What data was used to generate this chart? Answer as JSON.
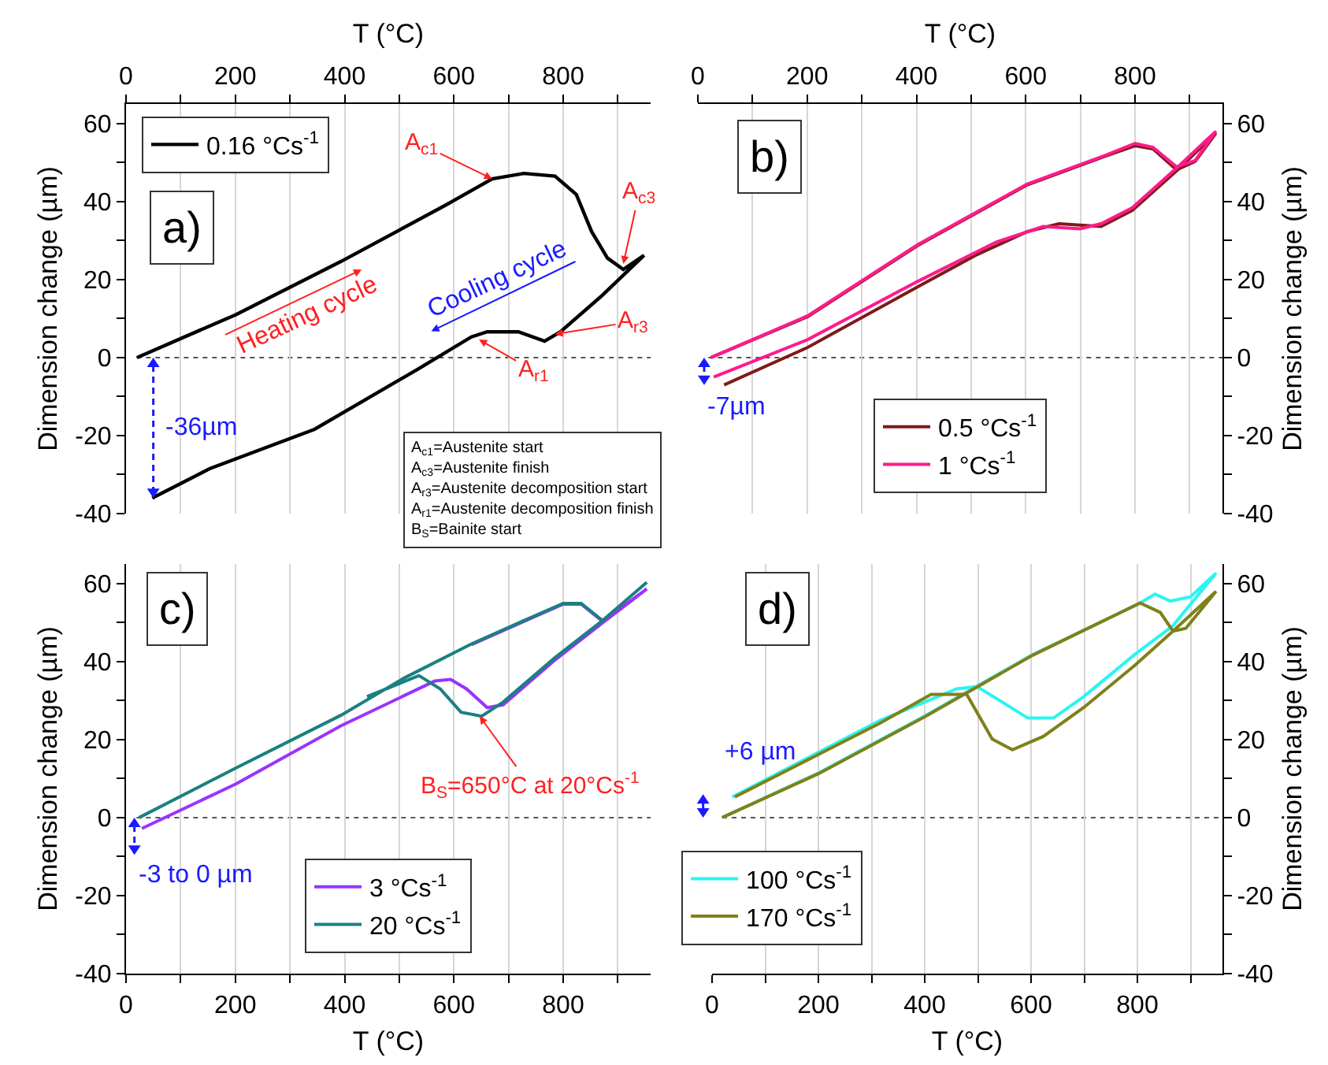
{
  "chart_data": [
    {
      "type": "line",
      "xlabel": "T (°C)",
      "ylabel": "Dimension change (µm)",
      "xlim": [
        0,
        960
      ],
      "ylim": [
        -40,
        65
      ],
      "xticks": [
        0,
        {
          "value": 100,
          "label": null
        },
        200,
        {
          "value": 300,
          "label": null
        },
        400,
        {
          "value": 500,
          "label": null
        },
        600,
        {
          "value": 700,
          "label": null
        },
        800,
        {
          "value": 900,
          "label": null
        }
      ],
      "yticks": [
        -40,
        {
          "value": -30,
          "label": null
        },
        -20,
        {
          "value": -10,
          "label": null
        },
        0,
        {
          "value": 10,
          "label": null
        },
        20,
        {
          "value": 30,
          "label": null
        },
        40,
        {
          "value": 50,
          "label": null
        },
        60
      ],
      "grid": "x",
      "legend": "top left",
      "ref_lines": [
        {
          "axis": "y",
          "value": 0,
          "color": "#555555",
          "line_style": "dotted"
        }
      ],
      "series": [
        {
          "name": "0.16 °Cs$^{-1}$",
          "color": "#000000",
          "x": [
            20,
            201,
            393,
            584,
            670,
            728,
            785,
            824,
            852,
            881,
            910,
            948,
            872,
            795,
            766,
            718,
            661,
            632,
            536,
            345,
            153,
            48
          ],
          "values": [
            0,
            11,
            24.6,
            39,
            45.8,
            47.2,
            46.5,
            41.8,
            32.3,
            25.5,
            22.6,
            26.2,
            16,
            6.6,
            4.2,
            6.6,
            6.6,
            5.3,
            -2.8,
            -18.4,
            -28.5,
            -36
          ]
        }
      ],
      "annotations": [
        "a)",
        {
          "text": "A$_{c1}$",
          "x": 670,
          "y": 45.8
        },
        {
          "text": "A$_{c3}$",
          "x": 910,
          "y": 24
        },
        {
          "text": "A$_{r3}$",
          "x": 785,
          "y": 6
        },
        {
          "text": "A$_{r1}$",
          "x": 646,
          "y": 4.6
        },
        "Heating cycle",
        "Cooling cycle",
        "-36µm",
        "A$_{c1}$=Austenite start\nA$_{c3}$=Austenite finish\nA$_{r3}$=Austenite decomposition start\nA$_{r1}$=Austenite decomposition finish\nB$_{S}$=Bainite start"
      ]
    },
    {
      "type": "line",
      "xlabel": "T (°C)",
      "ylabel": "Dimension change (µm)",
      "xlim": [
        0,
        960
      ],
      "ylim": [
        -40,
        65
      ],
      "xticks": [
        0,
        {
          "value": 100,
          "label": null
        },
        200,
        {
          "value": 300,
          "label": null
        },
        400,
        {
          "value": 500,
          "label": null
        },
        600,
        {
          "value": 700,
          "label": null
        },
        800,
        {
          "value": 900,
          "label": null
        }
      ],
      "yticks": [
        -40,
        {
          "value": -30,
          "label": null
        },
        -20,
        {
          "value": -10,
          "label": null
        },
        0,
        {
          "value": 10,
          "label": null
        },
        20,
        {
          "value": 30,
          "label": null
        },
        40,
        {
          "value": 50,
          "label": null
        },
        60
      ],
      "grid": "x",
      "legend": "bottom",
      "ref_lines": [
        {
          "axis": "y",
          "value": 0,
          "color": "#555555",
          "line_style": "dotted"
        }
      ],
      "series": [
        {
          "name": "0.5 °Cs$^{-1}$",
          "color": "#7f1a1a",
          "x": [
            24,
            201,
            402,
            603,
            747,
            800,
            833,
            876,
            910,
            948,
            881,
            795,
            738,
            661,
            603,
            508,
            402,
            201,
            48
          ],
          "values": [
            0,
            10.5,
            28.7,
            44.3,
            51.7,
            54.3,
            53.5,
            48.1,
            50.3,
            57.5,
            48.5,
            37.7,
            33.6,
            34.3,
            32.3,
            26.2,
            18.1,
            2.6,
            -7
          ]
        },
        {
          "name": "1 °Cs$^{-1}$",
          "color": "#ff1a8c",
          "x": [
            24,
            201,
            402,
            603,
            747,
            800,
            833,
            876,
            910,
            948,
            881,
            795,
            738,
            699,
            632,
            546,
            402,
            201,
            29
          ],
          "values": [
            0,
            10.7,
            28.9,
            44.5,
            51.9,
            54.9,
            53.9,
            48.9,
            50.5,
            58,
            49.2,
            38.4,
            34.3,
            33,
            33.6,
            29.6,
            19.5,
            4.6,
            -5
          ]
        }
      ],
      "annotations": [
        "b)",
        "-7µm"
      ]
    },
    {
      "type": "line",
      "xlabel": "T (°C)",
      "ylabel": "Dimension change (µm)",
      "xlim": [
        0,
        960
      ],
      "ylim": [
        -40,
        65
      ],
      "xticks": [
        0,
        {
          "value": 100,
          "label": null
        },
        200,
        {
          "value": 300,
          "label": null
        },
        400,
        {
          "value": 500,
          "label": null
        },
        600,
        {
          "value": 700,
          "label": null
        },
        800,
        {
          "value": 900,
          "label": null
        }
      ],
      "yticks": [
        -40,
        {
          "value": -30,
          "label": null
        },
        -20,
        {
          "value": -10,
          "label": null
        },
        0,
        {
          "value": 10,
          "label": null
        },
        20,
        {
          "value": 30,
          "label": null
        },
        40,
        {
          "value": 50,
          "label": null
        },
        60
      ],
      "grid": "x",
      "legend": "bottom",
      "ref_lines": [
        {
          "axis": "y",
          "value": 0,
          "color": "#555555",
          "line_style": "dotted"
        }
      ],
      "series": [
        {
          "name": "3 °Cs$^{-1}$",
          "color": "#9933ff",
          "x": [
            632,
            728,
            800,
            833,
            872,
            953,
            872,
            785,
            690,
            661,
            623,
            594,
            565,
            393,
            201,
            29
          ],
          "values": [
            44.3,
            50.3,
            54.7,
            54.7,
            50.3,
            58.6,
            49.9,
            40.4,
            28.9,
            28.2,
            33,
            35.4,
            35,
            23.5,
            8.6,
            -2.8
          ]
        },
        {
          "name": "20 °Cs$^{-1}$",
          "color": "#1a8080",
          "x": [
            24,
            201,
            393,
            508,
            632,
            728,
            800,
            833,
            872,
            953,
            872,
            785,
            690,
            651,
            613,
            575,
            536,
            441
          ],
          "values": [
            0,
            12.7,
            26.2,
            35.7,
            44.5,
            50.5,
            54.9,
            54.9,
            50.5,
            60.3,
            50.5,
            41,
            29.6,
            26,
            27,
            33,
            36.4,
            31
          ]
        }
      ],
      "annotations": [
        "c)",
        {
          "text": "B$_{S}$=650°C at 20°Cs$^{-1}$",
          "x": 647,
          "y": 26
        },
        "-3 to 0 µm"
      ]
    },
    {
      "type": "line",
      "xlabel": "T (°C)",
      "ylabel": "Dimension change (µm)",
      "xlim": [
        0,
        960
      ],
      "ylim": [
        -40,
        65
      ],
      "xticks": [
        0,
        {
          "value": 100,
          "label": null
        },
        200,
        {
          "value": 300,
          "label": null
        },
        400,
        {
          "value": 500,
          "label": null
        },
        600,
        {
          "value": 700,
          "label": null
        },
        800,
        {
          "value": 900,
          "label": null
        }
      ],
      "yticks": [
        -40,
        {
          "value": -30,
          "label": null
        },
        -20,
        {
          "value": -10,
          "label": null
        },
        0,
        {
          "value": 10,
          "label": null
        },
        20,
        {
          "value": 30,
          "label": null
        },
        40,
        {
          "value": 50,
          "label": null
        },
        60
      ],
      "grid": "x",
      "legend": "bottom left",
      "ref_lines": [
        {
          "axis": "y",
          "value": 0,
          "color": "#555555",
          "line_style": "dotted"
        }
      ],
      "series": [
        {
          "name": "100 °Cs$^{-1}$",
          "color": "#2af5f0",
          "x": [
            19,
            201,
            402,
            603,
            800,
            833,
            862,
            900,
            948,
            867,
            795,
            699,
            642,
            594,
            546,
            498,
            460,
            316,
            38
          ],
          "values": [
            0,
            11.5,
            26.2,
            41.8,
            54.6,
            57.3,
            55.5,
            56.6,
            62.7,
            49.2,
            41.8,
            31,
            25.5,
            25.5,
            29.6,
            33.6,
            33,
            24.9,
            5.3
          ]
        },
        {
          "name": "170 °Cs$^{-1}$",
          "color": "#808019",
          "x": [
            19,
            201,
            402,
            603,
            805,
            843,
            867,
            891,
            948,
            867,
            795,
            699,
            623,
            565,
            527,
            479,
            412,
            316,
            43
          ],
          "values": [
            0,
            11.3,
            26,
            41.6,
            55,
            52.6,
            47.8,
            48.5,
            58,
            47.8,
            39,
            28.2,
            20.8,
            17.4,
            20.1,
            31.6,
            31.6,
            24.2,
            5.3
          ]
        }
      ],
      "annotations": [
        "d)",
        "+6 µm"
      ]
    }
  ]
}
